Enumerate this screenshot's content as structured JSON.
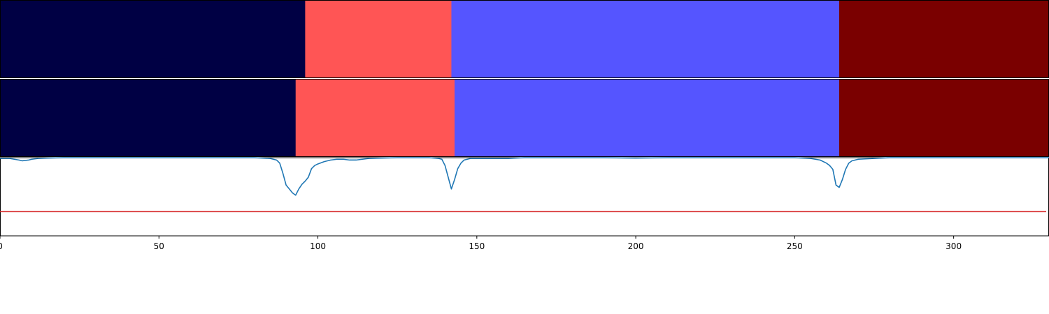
{
  "chart_data": {
    "type": "segmentation-bands-with-line",
    "xlim": [
      0,
      330
    ],
    "x_ticks": [
      0,
      50,
      100,
      150,
      200,
      250,
      300
    ],
    "x_tick_labels": [
      "0",
      "50",
      "100",
      "150",
      "200",
      "250",
      "300"
    ],
    "segment_colors": [
      "#000044",
      "#ff5555",
      "#5555ff",
      "#7a0000"
    ],
    "bands": [
      {
        "segments": [
          {
            "start": 0,
            "end": 96,
            "color": "#000044"
          },
          {
            "start": 96,
            "end": 142,
            "color": "#ff5555"
          },
          {
            "start": 142,
            "end": 264,
            "color": "#5555ff"
          },
          {
            "start": 264,
            "end": 330,
            "color": "#7a0000"
          }
        ]
      },
      {
        "segments": [
          {
            "start": 0,
            "end": 93,
            "color": "#000044"
          },
          {
            "start": 93,
            "end": 143,
            "color": "#ff5555"
          },
          {
            "start": 143,
            "end": 264,
            "color": "#5555ff"
          },
          {
            "start": 264,
            "end": 330,
            "color": "#7a0000"
          }
        ]
      }
    ],
    "line_panel": {
      "ylim": [
        0,
        1
      ],
      "threshold": {
        "value": 0.31,
        "color": "#d62728"
      },
      "series": [
        {
          "color": "#1f77b4",
          "x": [
            0,
            3,
            6,
            7,
            9,
            10,
            12,
            15,
            20,
            30,
            40,
            50,
            60,
            70,
            80,
            85,
            87,
            88,
            89,
            90,
            91,
            92,
            93,
            94,
            95,
            96,
            97,
            98,
            99,
            100,
            102,
            104,
            106,
            108,
            110,
            112,
            114,
            116,
            120,
            125,
            130,
            135,
            138,
            139,
            140,
            141,
            142,
            143,
            144,
            145,
            146,
            148,
            150,
            155,
            160,
            165,
            170,
            180,
            190,
            200,
            210,
            220,
            230,
            240,
            250,
            255,
            258,
            260,
            261,
            262,
            263,
            264,
            265,
            266,
            267,
            268,
            270,
            275,
            280,
            290,
            300,
            310,
            320,
            330
          ],
          "y": [
            0.99,
            0.99,
            0.97,
            0.96,
            0.97,
            0.98,
            0.99,
            0.995,
            1.0,
            1.0,
            1.0,
            1.0,
            1.0,
            1.0,
            1.0,
            0.99,
            0.97,
            0.93,
            0.8,
            0.65,
            0.6,
            0.55,
            0.52,
            0.6,
            0.66,
            0.7,
            0.75,
            0.86,
            0.9,
            0.92,
            0.95,
            0.97,
            0.98,
            0.98,
            0.97,
            0.97,
            0.98,
            0.99,
            0.995,
            1.0,
            1.0,
            1.0,
            0.99,
            0.98,
            0.9,
            0.75,
            0.6,
            0.72,
            0.86,
            0.93,
            0.97,
            0.99,
            0.99,
            0.99,
            0.99,
            1.0,
            1.0,
            1.0,
            1.0,
            0.995,
            1.0,
            1.0,
            1.0,
            1.0,
            1.0,
            0.99,
            0.97,
            0.93,
            0.9,
            0.85,
            0.65,
            0.62,
            0.72,
            0.85,
            0.93,
            0.96,
            0.98,
            0.99,
            1.0,
            1.0,
            1.0,
            1.0,
            1.0,
            1.0
          ]
        }
      ]
    }
  }
}
